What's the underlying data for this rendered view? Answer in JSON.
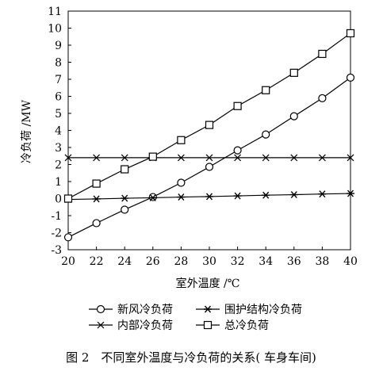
{
  "chart_data": {
    "type": "line",
    "caption": "图 2　不同室外温度与冷负荷的关系( 车身车间)",
    "xlabel": "室外温度 /℃",
    "ylabel": "冷负荷 /MW",
    "x": [
      20,
      22,
      24,
      26,
      28,
      30,
      32,
      34,
      36,
      38,
      40
    ],
    "xlim": [
      20,
      40
    ],
    "xticks": [
      20,
      22,
      24,
      26,
      28,
      30,
      32,
      34,
      36,
      38,
      40
    ],
    "ylim": [
      -3,
      11
    ],
    "yticks": [
      -3,
      -2,
      -1,
      0,
      1,
      2,
      3,
      4,
      5,
      6,
      7,
      8,
      9,
      10,
      11
    ],
    "series": [
      {
        "name": "新风冷负荷",
        "marker": "circle",
        "color": "#000000",
        "values": [
          -2.27,
          -1.44,
          -0.65,
          0.09,
          0.93,
          1.86,
          2.83,
          3.76,
          4.83,
          5.89,
          7.1
        ]
      },
      {
        "name": "围护结构冷负荷",
        "marker": "asterisk",
        "color": "#000000",
        "values": [
          -0.05,
          -0.02,
          0.02,
          0.05,
          0.09,
          0.12,
          0.16,
          0.2,
          0.23,
          0.27,
          0.3
        ]
      },
      {
        "name": "内部冷负荷",
        "marker": "x",
        "color": "#000000",
        "values": [
          2.4,
          2.4,
          2.4,
          2.4,
          2.4,
          2.4,
          2.4,
          2.4,
          2.4,
          2.4,
          2.4
        ]
      },
      {
        "name": "总冷负荷",
        "marker": "square",
        "color": "#000000",
        "values": [
          0,
          0.88,
          1.72,
          2.46,
          3.43,
          4.32,
          5.43,
          6.36,
          7.38,
          8.49,
          9.7
        ]
      }
    ]
  }
}
